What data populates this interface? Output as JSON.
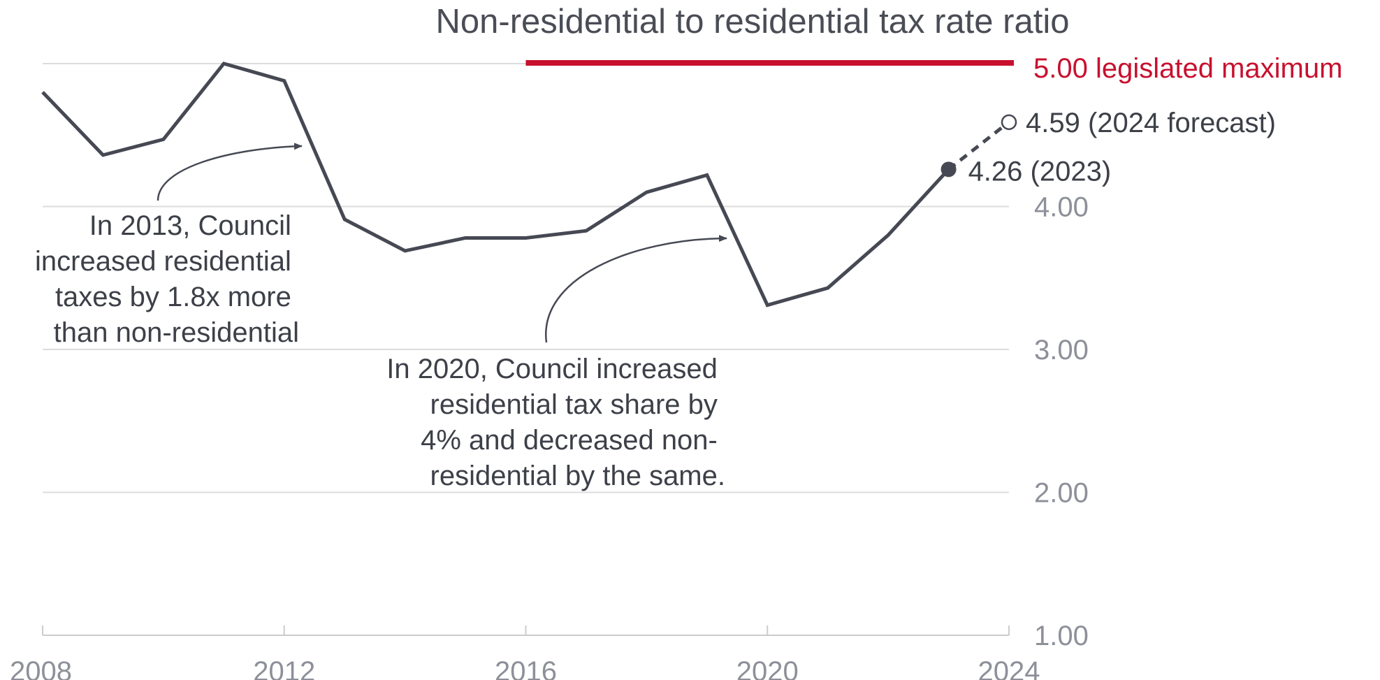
{
  "chart_data": {
    "type": "line",
    "title": "Non-residential to residential tax rate ratio",
    "xlabel": "",
    "ylabel": "",
    "xlim": [
      2008,
      2024
    ],
    "ylim": [
      1.0,
      5.0
    ],
    "x_ticks": [
      "2008",
      "2012",
      "2016",
      "2020",
      "2024"
    ],
    "y_ticks": [
      "1.00",
      "2.00",
      "3.00",
      "4.00"
    ],
    "grid": true,
    "y_axis_side": "right",
    "series": [
      {
        "x": [
          2008,
          2009,
          2010,
          2011,
          2012,
          2013,
          2014,
          2015,
          2016,
          2017,
          2018,
          2019,
          2020,
          2021,
          2022,
          2023
        ],
        "values": [
          4.8,
          4.36,
          4.47,
          5.0,
          4.88,
          3.91,
          3.69,
          3.78,
          3.78,
          3.83,
          4.1,
          4.22,
          3.31,
          3.43,
          3.8,
          4.26
        ],
        "color": "#464953"
      }
    ],
    "forecast": {
      "x": [
        2023,
        2024
      ],
      "values": [
        4.26,
        4.59
      ],
      "style": "dashed"
    },
    "reference_line": {
      "value": 5.0,
      "x_start": 2016,
      "x_end": 2024,
      "label": "5.00 legislated maximum",
      "color": "#c8102e"
    },
    "point_labels": [
      {
        "x": 2024,
        "value": 4.59,
        "label": "4.59 (2024 forecast)",
        "marker": "open"
      },
      {
        "x": 2023,
        "value": 4.26,
        "label": "4.26 (2023)",
        "marker": "filled"
      }
    ],
    "annotations": [
      {
        "lines": [
          "In 2013, Council",
          "increased residential",
          "taxes by 1.8x more",
          "than non-residential"
        ]
      },
      {
        "lines": [
          "In 2020, Council increased",
          "residential tax share by",
          "4% and decreased non-",
          "residential by the same."
        ]
      }
    ]
  }
}
